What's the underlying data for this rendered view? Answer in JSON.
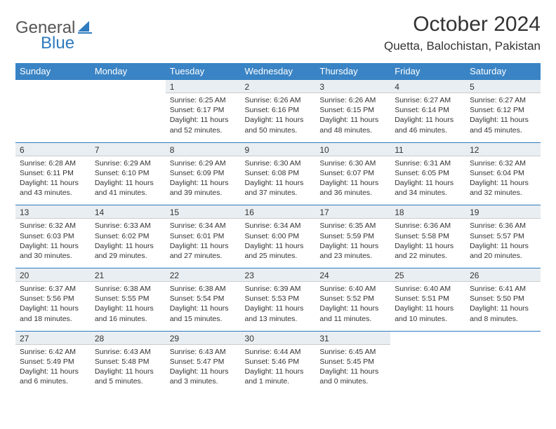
{
  "logo": {
    "part1": "General",
    "part2": "Blue"
  },
  "title": "October 2024",
  "location": "Quetta, Balochistan, Pakistan",
  "colors": {
    "header_bg": "#3a84c5",
    "header_text": "#ffffff",
    "daynum_bg": "#e9eef2",
    "daynum_border_top": "#2e7bbf",
    "logo_gray": "#555555",
    "logo_blue": "#2e7bbf"
  },
  "weekdays": [
    "Sunday",
    "Monday",
    "Tuesday",
    "Wednesday",
    "Thursday",
    "Friday",
    "Saturday"
  ],
  "weeks": [
    [
      null,
      null,
      {
        "n": "1",
        "sr": "Sunrise: 6:25 AM",
        "ss": "Sunset: 6:17 PM",
        "dl": "Daylight: 11 hours and 52 minutes."
      },
      {
        "n": "2",
        "sr": "Sunrise: 6:26 AM",
        "ss": "Sunset: 6:16 PM",
        "dl": "Daylight: 11 hours and 50 minutes."
      },
      {
        "n": "3",
        "sr": "Sunrise: 6:26 AM",
        "ss": "Sunset: 6:15 PM",
        "dl": "Daylight: 11 hours and 48 minutes."
      },
      {
        "n": "4",
        "sr": "Sunrise: 6:27 AM",
        "ss": "Sunset: 6:14 PM",
        "dl": "Daylight: 11 hours and 46 minutes."
      },
      {
        "n": "5",
        "sr": "Sunrise: 6:27 AM",
        "ss": "Sunset: 6:12 PM",
        "dl": "Daylight: 11 hours and 45 minutes."
      }
    ],
    [
      {
        "n": "6",
        "sr": "Sunrise: 6:28 AM",
        "ss": "Sunset: 6:11 PM",
        "dl": "Daylight: 11 hours and 43 minutes."
      },
      {
        "n": "7",
        "sr": "Sunrise: 6:29 AM",
        "ss": "Sunset: 6:10 PM",
        "dl": "Daylight: 11 hours and 41 minutes."
      },
      {
        "n": "8",
        "sr": "Sunrise: 6:29 AM",
        "ss": "Sunset: 6:09 PM",
        "dl": "Daylight: 11 hours and 39 minutes."
      },
      {
        "n": "9",
        "sr": "Sunrise: 6:30 AM",
        "ss": "Sunset: 6:08 PM",
        "dl": "Daylight: 11 hours and 37 minutes."
      },
      {
        "n": "10",
        "sr": "Sunrise: 6:30 AM",
        "ss": "Sunset: 6:07 PM",
        "dl": "Daylight: 11 hours and 36 minutes."
      },
      {
        "n": "11",
        "sr": "Sunrise: 6:31 AM",
        "ss": "Sunset: 6:05 PM",
        "dl": "Daylight: 11 hours and 34 minutes."
      },
      {
        "n": "12",
        "sr": "Sunrise: 6:32 AM",
        "ss": "Sunset: 6:04 PM",
        "dl": "Daylight: 11 hours and 32 minutes."
      }
    ],
    [
      {
        "n": "13",
        "sr": "Sunrise: 6:32 AM",
        "ss": "Sunset: 6:03 PM",
        "dl": "Daylight: 11 hours and 30 minutes."
      },
      {
        "n": "14",
        "sr": "Sunrise: 6:33 AM",
        "ss": "Sunset: 6:02 PM",
        "dl": "Daylight: 11 hours and 29 minutes."
      },
      {
        "n": "15",
        "sr": "Sunrise: 6:34 AM",
        "ss": "Sunset: 6:01 PM",
        "dl": "Daylight: 11 hours and 27 minutes."
      },
      {
        "n": "16",
        "sr": "Sunrise: 6:34 AM",
        "ss": "Sunset: 6:00 PM",
        "dl": "Daylight: 11 hours and 25 minutes."
      },
      {
        "n": "17",
        "sr": "Sunrise: 6:35 AM",
        "ss": "Sunset: 5:59 PM",
        "dl": "Daylight: 11 hours and 23 minutes."
      },
      {
        "n": "18",
        "sr": "Sunrise: 6:36 AM",
        "ss": "Sunset: 5:58 PM",
        "dl": "Daylight: 11 hours and 22 minutes."
      },
      {
        "n": "19",
        "sr": "Sunrise: 6:36 AM",
        "ss": "Sunset: 5:57 PM",
        "dl": "Daylight: 11 hours and 20 minutes."
      }
    ],
    [
      {
        "n": "20",
        "sr": "Sunrise: 6:37 AM",
        "ss": "Sunset: 5:56 PM",
        "dl": "Daylight: 11 hours and 18 minutes."
      },
      {
        "n": "21",
        "sr": "Sunrise: 6:38 AM",
        "ss": "Sunset: 5:55 PM",
        "dl": "Daylight: 11 hours and 16 minutes."
      },
      {
        "n": "22",
        "sr": "Sunrise: 6:38 AM",
        "ss": "Sunset: 5:54 PM",
        "dl": "Daylight: 11 hours and 15 minutes."
      },
      {
        "n": "23",
        "sr": "Sunrise: 6:39 AM",
        "ss": "Sunset: 5:53 PM",
        "dl": "Daylight: 11 hours and 13 minutes."
      },
      {
        "n": "24",
        "sr": "Sunrise: 6:40 AM",
        "ss": "Sunset: 5:52 PM",
        "dl": "Daylight: 11 hours and 11 minutes."
      },
      {
        "n": "25",
        "sr": "Sunrise: 6:40 AM",
        "ss": "Sunset: 5:51 PM",
        "dl": "Daylight: 11 hours and 10 minutes."
      },
      {
        "n": "26",
        "sr": "Sunrise: 6:41 AM",
        "ss": "Sunset: 5:50 PM",
        "dl": "Daylight: 11 hours and 8 minutes."
      }
    ],
    [
      {
        "n": "27",
        "sr": "Sunrise: 6:42 AM",
        "ss": "Sunset: 5:49 PM",
        "dl": "Daylight: 11 hours and 6 minutes."
      },
      {
        "n": "28",
        "sr": "Sunrise: 6:43 AM",
        "ss": "Sunset: 5:48 PM",
        "dl": "Daylight: 11 hours and 5 minutes."
      },
      {
        "n": "29",
        "sr": "Sunrise: 6:43 AM",
        "ss": "Sunset: 5:47 PM",
        "dl": "Daylight: 11 hours and 3 minutes."
      },
      {
        "n": "30",
        "sr": "Sunrise: 6:44 AM",
        "ss": "Sunset: 5:46 PM",
        "dl": "Daylight: 11 hours and 1 minute."
      },
      {
        "n": "31",
        "sr": "Sunrise: 6:45 AM",
        "ss": "Sunset: 5:45 PM",
        "dl": "Daylight: 11 hours and 0 minutes."
      },
      null,
      null
    ]
  ]
}
